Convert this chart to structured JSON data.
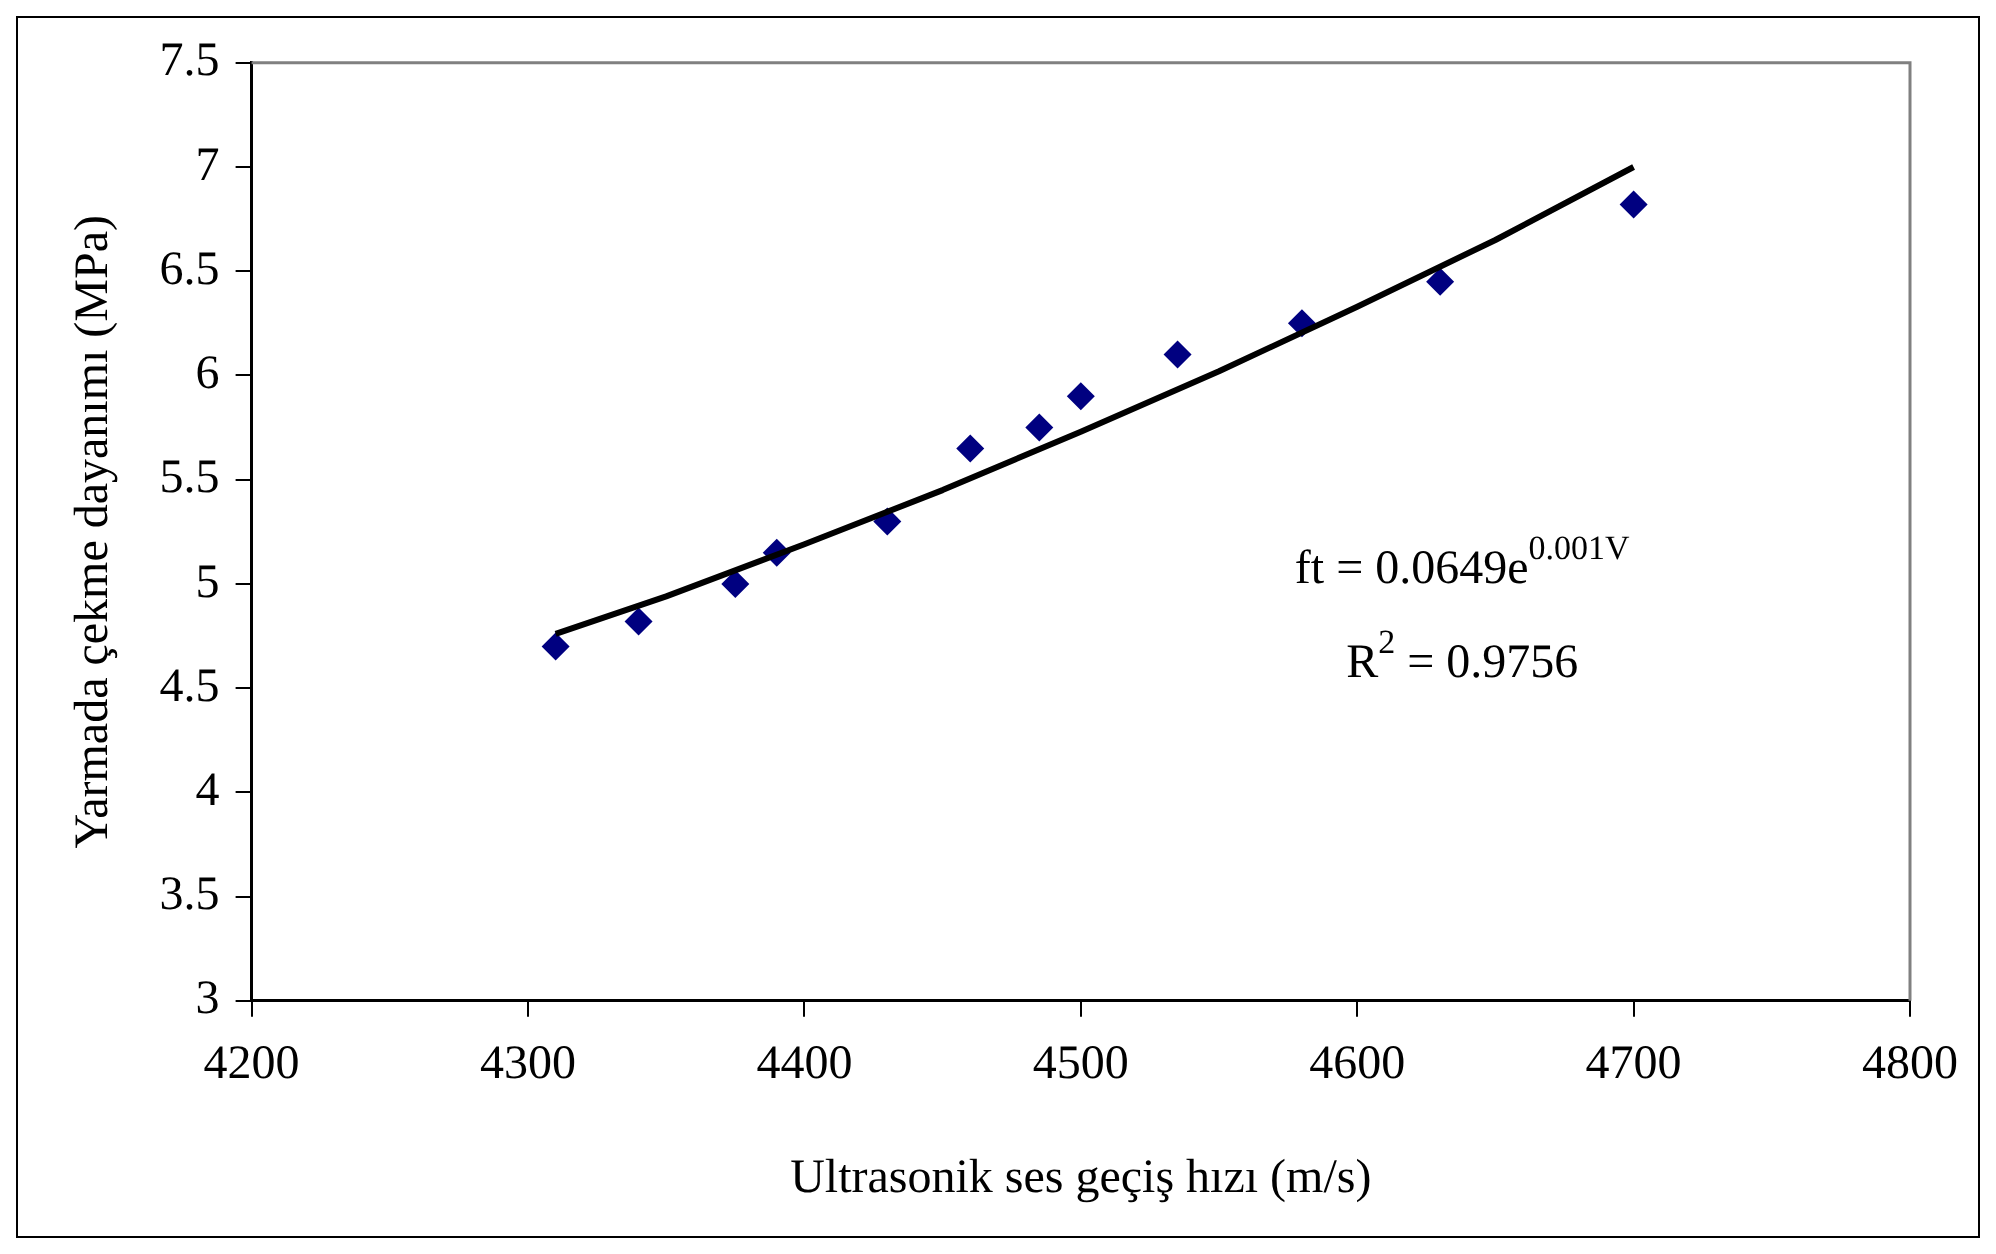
{
  "chart_data": {
    "type": "scatter",
    "xlabel": "Ultrasonik ses geçiş hızı (m/s)",
    "ylabel": "Yarmada çekme dayanımı (MPa)",
    "annotations": [
      "ft = 0.0649e$^{0.001V}$",
      "R$^{2}$ = 0.9756"
    ],
    "xlim": [
      4200,
      4800
    ],
    "xticks": [
      4200,
      4300,
      4400,
      4500,
      4600,
      4700,
      4800
    ],
    "ylim": [
      3,
      7.5
    ],
    "yticks": [
      3,
      3.5,
      4,
      4.5,
      5,
      5.5,
      6,
      6.5,
      7,
      7.5
    ],
    "grid": false,
    "legend": false,
    "marker": "diamond",
    "series": [
      {
        "color": "#000080",
        "x": [
          4310,
          4340,
          4375,
          4390,
          4430,
          4460,
          4485,
          4500,
          4535,
          4580,
          4630,
          4700
        ],
        "values": [
          4.7,
          4.82,
          5.0,
          5.15,
          5.3,
          5.65,
          5.75,
          5.9,
          6.1,
          6.25,
          6.45,
          6.82
        ]
      },
      {
        "type": "line",
        "color": "#000000",
        "marker": "none",
        "line_style": "solid",
        "x": [
          4310,
          4350,
          4400,
          4450,
          4500,
          4550,
          4600,
          4650,
          4700
        ],
        "values": [
          4.76,
          4.94,
          5.19,
          5.45,
          5.73,
          6.02,
          6.33,
          6.65,
          7.0
        ]
      }
    ]
  }
}
